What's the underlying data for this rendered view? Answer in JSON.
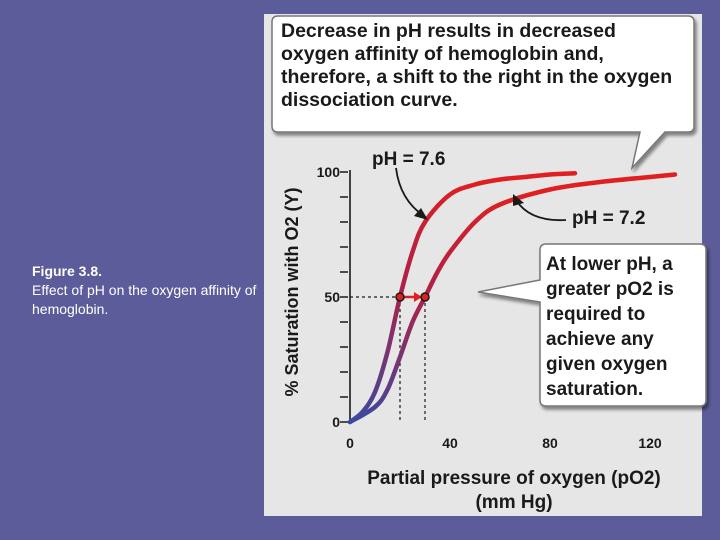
{
  "caption": {
    "figure_number": "Figure 3.8.",
    "text": "Effect of pH on the oxygen affinity of hemoglobin."
  },
  "callouts": {
    "top": "Decrease in pH results in decreased oxygen affinity of hemoglobin and, therefore, a shift to the right in the oxygen dissociation curve.",
    "side": "At lower pH, a greater pO2 is required to achieve any given oxygen saturation."
  },
  "colors": {
    "background": "#5c5c9a",
    "panel": "#e6e6e6",
    "curve_low": "#3a4aa0",
    "curve_high": "#e02020",
    "marker": "#e02020"
  },
  "chart_data": {
    "type": "line",
    "xlabel": "Partial pressure of oxygen (pO2) (mm Hg)",
    "ylabel": "% Saturation with O2 (Y)",
    "xlim": [
      0,
      130
    ],
    "ylim": [
      0,
      100
    ],
    "x_ticks": [
      0,
      40,
      80,
      120
    ],
    "y_ticks": [
      0,
      50,
      100
    ],
    "grid": false,
    "series": [
      {
        "name": "pH = 7.6",
        "x": [
          0,
          5,
          10,
          15,
          20,
          25,
          30,
          40,
          50,
          60,
          70,
          80,
          90
        ],
        "y": [
          0,
          4,
          12,
          28,
          50,
          68,
          80,
          91,
          95,
          97,
          98,
          99,
          99.5
        ]
      },
      {
        "name": "pH = 7.2",
        "x": [
          0,
          10,
          15,
          20,
          25,
          30,
          35,
          40,
          50,
          60,
          80,
          100,
          120,
          130
        ],
        "y": [
          0,
          6,
          13,
          26,
          40,
          50,
          60,
          68,
          80,
          87,
          93,
          96,
          98,
          99
        ]
      }
    ],
    "markers": [
      {
        "series": "pH = 7.6",
        "x": 20,
        "y": 50
      },
      {
        "series": "pH = 7.2",
        "x": 30,
        "y": 50
      }
    ]
  }
}
